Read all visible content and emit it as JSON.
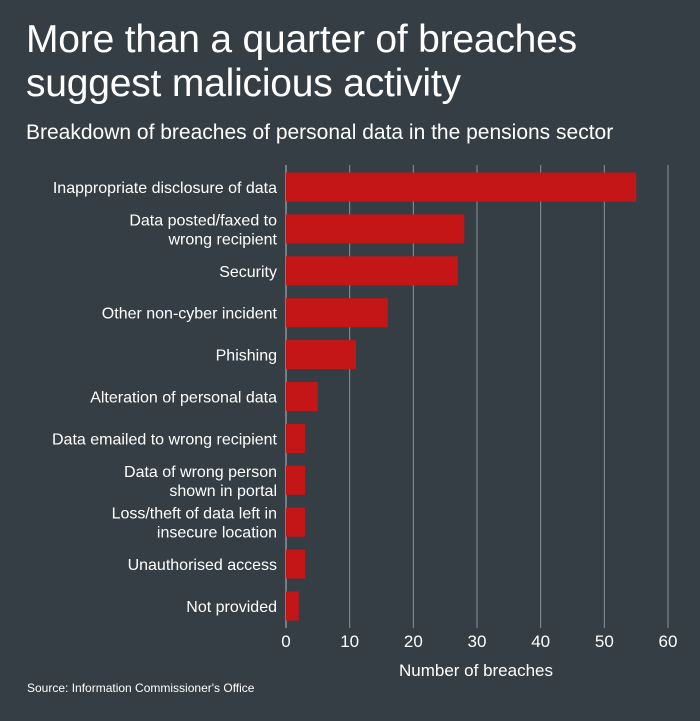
{
  "title": "More than a quarter of breaches suggest malicious activity",
  "subtitle": "Breakdown of breaches of personal data in the pensions sector",
  "source": "Source: Information Commissioner's Office",
  "colors": {
    "background": "#353e44",
    "bar": "#c41517",
    "grid": "#8b9499",
    "text": "#ffffff"
  },
  "chart_data": {
    "type": "bar",
    "orientation": "horizontal",
    "title": "More than a quarter of breaches suggest malicious activity",
    "subtitle": "Breakdown of breaches of personal data in the pensions sector",
    "xlabel": "Number of breaches",
    "ylabel": "",
    "xlim": [
      0,
      60
    ],
    "xticks": [
      0,
      10,
      20,
      30,
      40,
      50,
      60
    ],
    "grid": true,
    "categories": [
      "Inappropriate disclosure of data",
      "Data posted/faxed to\nwrong recipient",
      "Security",
      "Other non-cyber incident",
      "Phishing",
      "Alteration of personal data",
      "Data emailed to wrong recipient",
      "Data of wrong person\nshown in portal",
      "Loss/theft of data left in\ninsecure location",
      "Unauthorised access",
      "Not provided"
    ],
    "values": [
      55,
      28,
      27,
      16,
      11,
      5,
      3,
      3,
      3,
      3,
      2
    ]
  }
}
